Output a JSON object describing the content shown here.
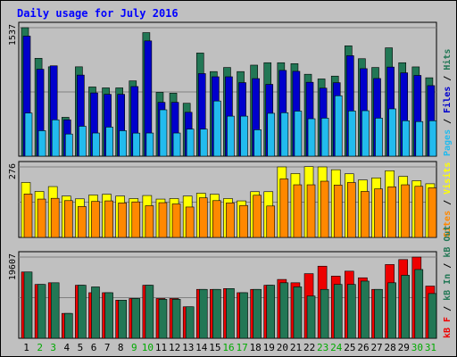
{
  "chart_data": {
    "type": "bar",
    "title": "Daily usage for July 2016",
    "categories": [
      "1",
      "2",
      "3",
      "4",
      "5",
      "6",
      "7",
      "8",
      "9",
      "10",
      "11",
      "12",
      "13",
      "14",
      "15",
      "16",
      "17",
      "18",
      "19",
      "20",
      "21",
      "22",
      "23",
      "24",
      "25",
      "26",
      "27",
      "28",
      "29",
      "30",
      "31"
    ],
    "weekend_days": [
      "2",
      "3",
      "9",
      "10",
      "16",
      "17",
      "23",
      "24",
      "30",
      "31"
    ],
    "colors": {
      "hits": "#227755",
      "files": "#0000cc",
      "pages": "#22bbee",
      "visits": "#ffff00",
      "sites": "#ff8800",
      "kb_in": "#227755",
      "kb_out": "#227755",
      "kb_f": "#ee0000",
      "background": "#c0c0c0",
      "border": "#000000",
      "title": "#0000ff",
      "weekday_label": "#000000",
      "weekend_label": "#00aa00"
    },
    "panels": [
      {
        "name": "hits-files-pages",
        "ymax_label": "1537",
        "ymax": 1537,
        "legend": [
          {
            "text": "Pages",
            "color": "#22bbee"
          },
          {
            "text": " / ",
            "color": "#000000"
          },
          {
            "text": "Files",
            "color": "#0000cc"
          },
          {
            "text": " / ",
            "color": "#000000"
          },
          {
            "text": "Hits",
            "color": "#227755"
          }
        ],
        "series": [
          {
            "name": "Hits",
            "values": [
              1537,
              1171,
              1069,
              465,
              1069,
              828,
              817,
              817,
              901,
              1478,
              764,
              754,
              633,
              1234,
              1012,
              1061,
              1012,
              1089,
              1118,
              1118,
              1107,
              980,
              924,
              958,
              1320,
              1166,
              1061,
              1296,
              1118,
              1068,
              938
            ]
          },
          {
            "name": "Files",
            "values": [
              1436,
              1040,
              1081,
              435,
              970,
              757,
              740,
              740,
              833,
              1379,
              644,
              644,
              525,
              988,
              950,
              950,
              880,
              928,
              859,
              1026,
              1015,
              884,
              814,
              879,
              1202,
              1047,
              929,
              1066,
              997,
              966,
              844
            ]
          },
          {
            "name": "Pages",
            "values": [
              516,
              305,
              435,
              265,
              358,
              277,
              348,
              305,
              276,
              277,
              555,
              277,
              324,
              324,
              660,
              479,
              479,
              316,
              513,
              520,
              539,
              448,
              455,
              723,
              541,
              544,
              455,
              566,
              424,
              414,
              424
            ]
          }
        ]
      },
      {
        "name": "visits-sites",
        "ymax_label": "276",
        "ymax": 276,
        "legend": [
          {
            "text": "Sites",
            "color": "#ff8800"
          },
          {
            "text": " / ",
            "color": "#000000"
          },
          {
            "text": "Visits",
            "color": "#ffff00"
          }
        ],
        "series": [
          {
            "name": "Visits",
            "values": [
              215,
              180,
              199,
              162,
              151,
              166,
              169,
              162,
              152,
              164,
              150,
              152,
              162,
              173,
              169,
              152,
              143,
              179,
              179,
              276,
              250,
              277,
              276,
              265,
              249,
              225,
              233,
              261,
              239,
              222,
              210
            ]
          },
          {
            "name": "Sites",
            "values": [
              170,
              150,
              153,
              144,
              121,
              141,
              143,
              135,
              139,
              124,
              136,
              131,
              119,
              155,
              144,
              135,
              125,
              165,
              123,
              229,
              206,
              206,
              220,
              205,
              215,
              180,
              190,
              198,
              206,
              200,
              194
            ]
          }
        ]
      },
      {
        "name": "kb",
        "ymax_label": "19607",
        "ymax": 19607,
        "legend": [
          {
            "text": "kB F",
            "color": "#ee0000"
          },
          {
            "text": " / ",
            "color": "#000000"
          },
          {
            "text": "kB In",
            "color": "#227755"
          },
          {
            "text": " / ",
            "color": "#000000"
          },
          {
            "text": "kB Out",
            "color": "#227755"
          }
        ],
        "series": [
          {
            "name": "kB F",
            "values": [
              16000,
              13000,
              13400,
              6000,
              12800,
              11000,
              11000,
              9200,
              9600,
              12800,
              9600,
              9600,
              7600,
              11800,
              11800,
              12000,
              11000,
              11800,
              12800,
              14200,
              13400,
              15600,
              17400,
              15000,
              16200,
              14600,
              11800,
              17800,
              19000,
              19600,
              12600
            ]
          },
          {
            "name": "kB Out",
            "values": [
              16000,
              13000,
              13400,
              6000,
              12800,
              12400,
              11000,
              9200,
              9600,
              12800,
              9400,
              9400,
              7600,
              11800,
              11800,
              12000,
              11000,
              11800,
              12800,
              13400,
              12400,
              10200,
              11800,
              13000,
              13000,
              13800,
              11800,
              13400,
              15200,
              16600,
              10800
            ]
          }
        ]
      }
    ]
  }
}
